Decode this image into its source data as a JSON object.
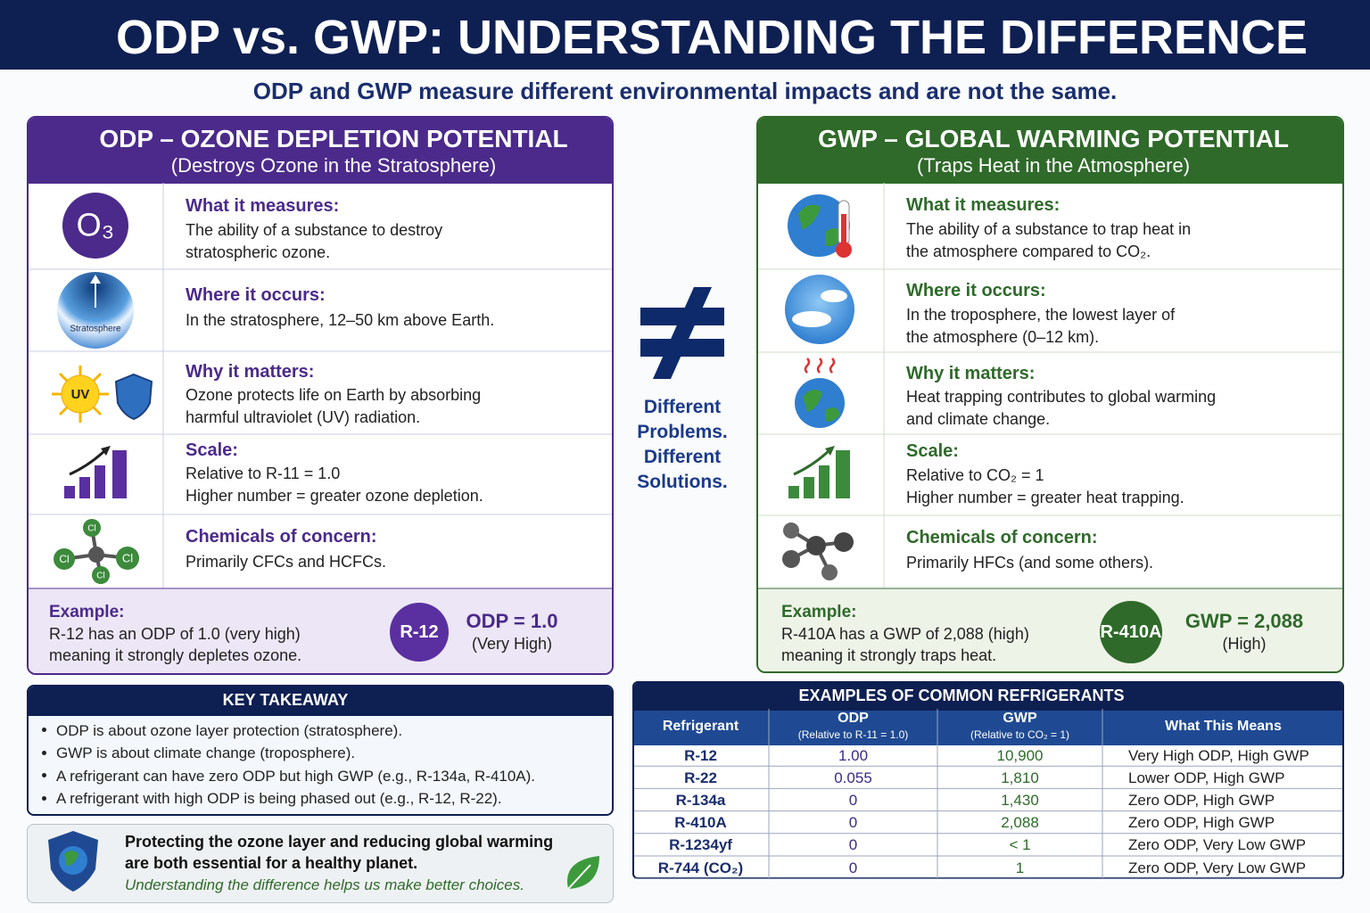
{
  "header": {
    "title": "ODP vs. GWP: UNDERSTANDING THE DIFFERENCE",
    "subtitle": "ODP and GWP measure different environmental impacts and are not the same."
  },
  "odp": {
    "title": "ODP – OZONE DEPLETION POTENTIAL",
    "subtitle": "(Destroys Ozone in the Stratosphere)",
    "icons": {
      "ozone": "O₃",
      "layer": "Stratosphere",
      "sun": "UV",
      "atoms": [
        "Cl",
        "Cl",
        "Cl",
        "Cl"
      ]
    },
    "rows": [
      {
        "heading": "What it measures:",
        "lines": [
          "The ability of a substance to destroy",
          "stratospheric ozone."
        ]
      },
      {
        "heading": "Where it occurs:",
        "lines": [
          "In the stratosphere, 12–50 km above Earth."
        ]
      },
      {
        "heading": "Why it matters:",
        "lines": [
          "Ozone protects life on Earth by absorbing",
          "harmful ultraviolet (UV) radiation."
        ]
      },
      {
        "heading": "Scale:",
        "lines": [
          "Relative to R-11 = 1.0",
          "Higher number = greater ozone depletion."
        ]
      },
      {
        "heading": "Chemicals of concern:",
        "lines": [
          "Primarily CFCs and HCFCs."
        ]
      }
    ],
    "example": {
      "label": "Example:",
      "lines": [
        "R-12 has an ODP of 1.0 (very high)",
        "meaning it strongly depletes ozone."
      ],
      "badge": "R-12",
      "value": "ODP = 1.0",
      "rating": "(Very High)"
    }
  },
  "gwp": {
    "title": "GWP – GLOBAL WARMING POTENTIAL",
    "subtitle": "(Traps Heat in the Atmosphere)",
    "rows": [
      {
        "heading": "What it measures:",
        "lines": [
          "The ability of a substance to trap heat in",
          "the atmosphere compared to CO₂."
        ]
      },
      {
        "heading": "Where it occurs:",
        "lines": [
          "In the troposphere, the lowest layer of",
          "the atmosphere (0–12 km)."
        ]
      },
      {
        "heading": "Why it matters:",
        "lines": [
          "Heat trapping contributes to global warming",
          "and climate change."
        ]
      },
      {
        "heading": "Scale:",
        "lines": [
          "Relative to CO₂ = 1",
          "Higher number = greater heat trapping."
        ]
      },
      {
        "heading": "Chemicals of concern:",
        "lines": [
          "Primarily HFCs (and some others)."
        ]
      }
    ],
    "example": {
      "label": "Example:",
      "lines": [
        "R-410A has a GWP of 2,088 (high)",
        "meaning it strongly traps heat."
      ],
      "badge": "R-410A",
      "value": "GWP = 2,088",
      "rating": "(High)"
    }
  },
  "middle": {
    "lines": [
      "Different",
      "Problems.",
      "Different",
      "Solutions."
    ]
  },
  "takeaway": {
    "title": "KEY TAKEAWAY",
    "items": [
      "ODP is about ozone layer protection (stratosphere).",
      "GWP is about climate change (troposphere).",
      "A refrigerant can have zero ODP but high GWP (e.g., R-134a, R-410A).",
      "A refrigerant with high ODP is being phased out (e.g., R-12, R-22)."
    ]
  },
  "note": {
    "lines": [
      "Protecting the ozone layer and reducing global warming",
      "are both essential for a healthy planet."
    ],
    "tagline": "Understanding the difference helps us make better choices."
  },
  "table": {
    "title": "EXAMPLES OF COMMON REFRIGERANTS",
    "columns": [
      {
        "label": "Refrigerant"
      },
      {
        "label": "ODP",
        "note": "(Relative to R-11 = 1.0)"
      },
      {
        "label": "GWP",
        "note": "(Relative to CO₂ = 1)"
      },
      {
        "label": "What This Means"
      }
    ],
    "rows": [
      [
        "R-12",
        "1.00",
        "10,900",
        "Very High ODP, High GWP"
      ],
      [
        "R-22",
        "0.055",
        "1,810",
        "Lower ODP, High GWP"
      ],
      [
        "R-134a",
        "0",
        "1,430",
        "Zero ODP, High GWP"
      ],
      [
        "R-410A",
        "0",
        "2,088",
        "Zero ODP, High GWP"
      ],
      [
        "R-1234yf",
        "0",
        "< 1",
        "Zero ODP, Very Low GWP"
      ],
      [
        "R-744 (CO₂)",
        "0",
        "1",
        "Zero ODP, Very Low GWP"
      ]
    ]
  }
}
